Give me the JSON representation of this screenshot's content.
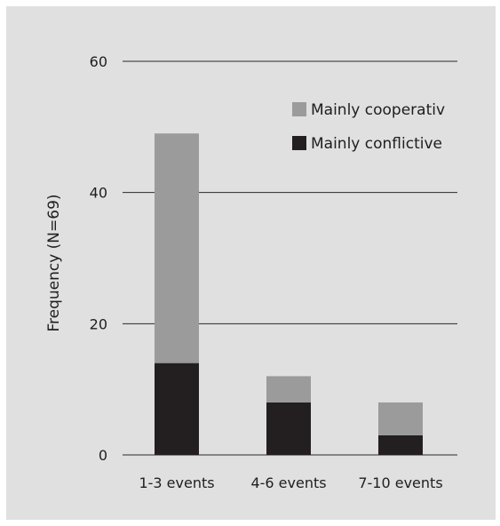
{
  "chart_data": {
    "type": "bar",
    "stacked": true,
    "title": "",
    "xlabel": "",
    "ylabel": "Frequency (N=69)",
    "ylim": [
      0,
      60
    ],
    "yticks": [
      0,
      20,
      40,
      60
    ],
    "categories": [
      "1-3 events",
      "4-6 events",
      "7-10 events"
    ],
    "series": [
      {
        "name": "Mainly conflictive",
        "values": [
          14,
          8,
          3
        ],
        "color": "#231f20"
      },
      {
        "name": "Mainly cooperativ",
        "values": [
          35,
          4,
          5
        ],
        "color": "#9b9b9b"
      }
    ],
    "grid": true,
    "legend_position": "top-right"
  }
}
